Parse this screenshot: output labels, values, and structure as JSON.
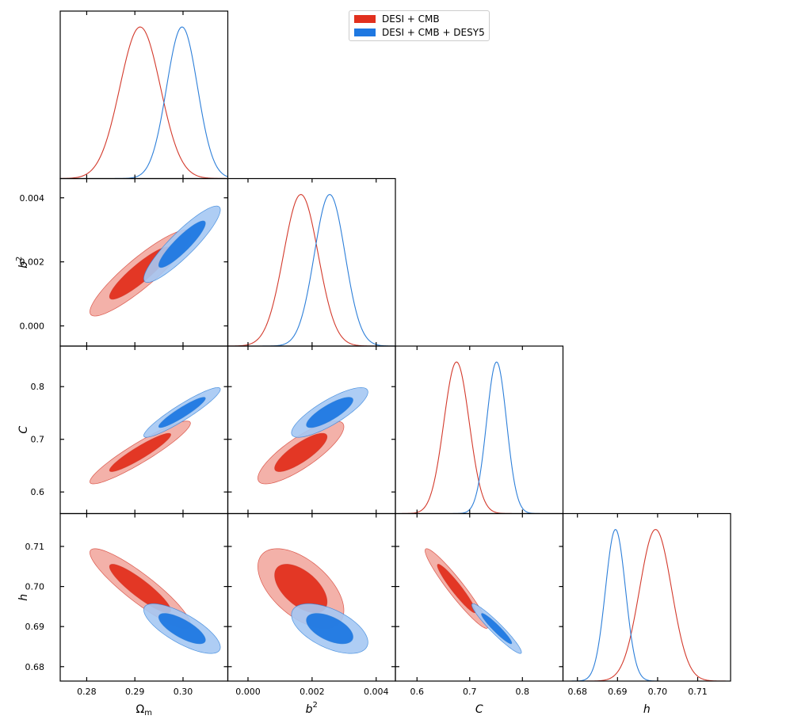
{
  "chart_data": {
    "type": "triangle",
    "title": "",
    "parameters": [
      {
        "label": "Ω",
        "sub": "m",
        "ticks": [
          0.28,
          0.29,
          0.3
        ],
        "tick_labels": [
          "0.28",
          "0.29",
          "0.30"
        ],
        "range": [
          0.2745,
          0.3093
        ]
      },
      {
        "label": "b",
        "sup": "2",
        "ticks": [
          0.0,
          0.002,
          0.004
        ],
        "tick_labels": [
          "0.000",
          "0.002",
          "0.004"
        ],
        "range": [
          -0.00063,
          0.0046
        ]
      },
      {
        "label": "C",
        "ticks": [
          0.6,
          0.7,
          0.8
        ],
        "tick_labels": [
          "0.6",
          "0.7",
          "0.8"
        ],
        "range": [
          0.559,
          0.877
        ]
      },
      {
        "label": "h",
        "ticks": [
          0.68,
          0.69,
          0.7,
          0.71
        ],
        "tick_labels": [
          "0.68",
          "0.69",
          "0.70",
          "0.71"
        ],
        "range": [
          0.6764,
          0.7182
        ]
      }
    ],
    "series": [
      {
        "name": "DESI + CMB",
        "line_color": "#d33a2c",
        "fill_inner": "#e1301e",
        "fill_outer": "#f2a8a0",
        "mean": [
          0.2911,
          0.00165,
          0.675,
          0.6995
        ],
        "sigma": [
          0.0042,
          0.00054,
          0.024,
          0.004
        ],
        "corr": [
          [
            1,
            0.9,
            0.93,
            -0.9
          ],
          [
            0.9,
            1,
            0.82,
            -0.55
          ],
          [
            0.93,
            0.82,
            1,
            -0.95
          ],
          [
            -0.9,
            -0.55,
            -0.95,
            1
          ]
        ]
      },
      {
        "name": "DESI + CMB + DESY5",
        "line_color": "#2d7fd9",
        "fill_inner": "#1f78e1",
        "fill_outer": "#a5c8f3",
        "mean": [
          0.2998,
          0.00255,
          0.751,
          0.6895
        ],
        "sigma": [
          0.0032,
          0.00048,
          0.019,
          0.0025
        ],
        "corr": [
          [
            1,
            0.9,
            0.93,
            -0.75
          ],
          [
            0.9,
            1,
            0.82,
            -0.55
          ],
          [
            0.93,
            0.82,
            1,
            -0.95
          ],
          [
            -0.75,
            -0.55,
            -0.95,
            1
          ]
        ]
      }
    ],
    "legend": "top-center"
  }
}
